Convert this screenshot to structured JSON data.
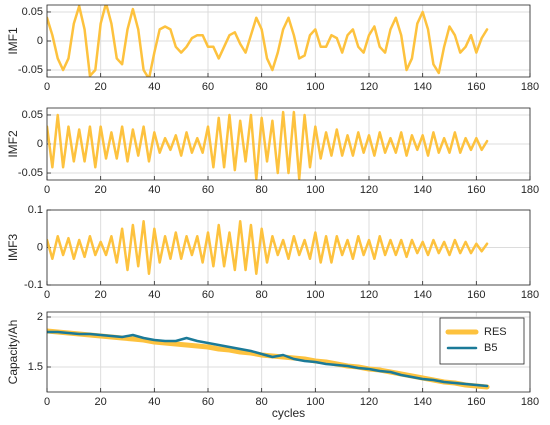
{
  "chart_data": [
    {
      "type": "line",
      "ylabel": "IMF1",
      "x": [
        0,
        2,
        4,
        6,
        8,
        10,
        12,
        14,
        16,
        18,
        20,
        22,
        24,
        26,
        28,
        30,
        32,
        34,
        36,
        38,
        40,
        42,
        44,
        46,
        48,
        50,
        52,
        54,
        56,
        58,
        60,
        62,
        64,
        66,
        68,
        70,
        72,
        74,
        76,
        78,
        80,
        82,
        84,
        86,
        88,
        90,
        92,
        94,
        96,
        98,
        100,
        102,
        104,
        106,
        108,
        110,
        112,
        114,
        116,
        118,
        120,
        122,
        124,
        126,
        128,
        130,
        132,
        134,
        136,
        138,
        140,
        142,
        144,
        146,
        148,
        150,
        152,
        154,
        156,
        158,
        160,
        162,
        164
      ],
      "series": [
        {
          "color": "#fdc23e",
          "values": [
            0.04,
            0.01,
            -0.03,
            -0.05,
            -0.03,
            0.03,
            0.06,
            0.02,
            -0.06,
            -0.05,
            0.03,
            0.065,
            0.03,
            -0.03,
            -0.04,
            0.02,
            0.055,
            0.02,
            -0.05,
            -0.065,
            -0.02,
            0.02,
            0.025,
            0.02,
            -0.01,
            -0.02,
            -0.01,
            0.005,
            0.01,
            0.01,
            -0.01,
            -0.01,
            -0.03,
            -0.01,
            0.01,
            0.015,
            -0.005,
            -0.02,
            0.01,
            0.04,
            0.02,
            -0.03,
            -0.05,
            -0.02,
            0.02,
            0.04,
            0.01,
            -0.03,
            -0.025,
            0.01,
            0.02,
            -0.01,
            -0.01,
            0.01,
            0.005,
            -0.02,
            0.01,
            0.02,
            -0.01,
            -0.02,
            0.01,
            0.025,
            -0.01,
            -0.02,
            0.02,
            0.04,
            0.01,
            -0.05,
            -0.03,
            0.03,
            0.05,
            0.02,
            -0.04,
            -0.055,
            -0.01,
            0.025,
            0.01,
            -0.02,
            -0.01,
            0.01,
            -0.02,
            0.005,
            0.02
          ]
        }
      ],
      "xlim": [
        0,
        180
      ],
      "xticks": [
        0,
        20,
        40,
        60,
        80,
        100,
        120,
        140,
        160,
        180
      ],
      "ylim": [
        -0.062,
        0.062
      ],
      "yticks": [
        -0.05,
        0,
        0.05
      ],
      "grid": true
    },
    {
      "type": "line",
      "ylabel": "IMF2",
      "x": [
        0,
        2,
        4,
        6,
        8,
        10,
        12,
        14,
        16,
        18,
        20,
        22,
        24,
        26,
        28,
        30,
        32,
        34,
        36,
        38,
        40,
        42,
        44,
        46,
        48,
        50,
        52,
        54,
        56,
        58,
        60,
        62,
        64,
        66,
        68,
        70,
        72,
        74,
        76,
        78,
        80,
        82,
        84,
        86,
        88,
        90,
        92,
        94,
        96,
        98,
        100,
        102,
        104,
        106,
        108,
        110,
        112,
        114,
        116,
        118,
        120,
        122,
        124,
        126,
        128,
        130,
        132,
        134,
        136,
        138,
        140,
        142,
        144,
        146,
        148,
        150,
        152,
        154,
        156,
        158,
        160,
        162,
        164
      ],
      "series": [
        {
          "color": "#fdc23e",
          "values": [
            0.03,
            -0.04,
            0.05,
            -0.04,
            0.03,
            -0.03,
            0.025,
            -0.03,
            0.03,
            -0.04,
            0.03,
            -0.025,
            0.02,
            -0.025,
            0.03,
            -0.03,
            0.025,
            -0.02,
            0.03,
            -0.03,
            0.02,
            -0.015,
            0.01,
            -0.01,
            0.015,
            -0.02,
            0.02,
            -0.015,
            0.01,
            -0.015,
            0.03,
            -0.04,
            0.045,
            -0.04,
            0.05,
            -0.045,
            0.04,
            -0.03,
            0.05,
            -0.06,
            0.045,
            -0.03,
            0.04,
            -0.05,
            0.055,
            -0.05,
            0.055,
            -0.06,
            0.05,
            -0.04,
            0.03,
            -0.025,
            0.02,
            -0.02,
            0.025,
            -0.02,
            0.015,
            -0.02,
            0.02,
            -0.015,
            0.015,
            -0.02,
            0.02,
            -0.015,
            0.01,
            -0.015,
            0.02,
            -0.02,
            0.015,
            -0.01,
            0.015,
            -0.02,
            0.02,
            -0.015,
            0.01,
            -0.015,
            0.02,
            -0.015,
            0.01,
            -0.01,
            0.01,
            -0.01,
            0.005
          ]
        }
      ],
      "xlim": [
        0,
        180
      ],
      "xticks": [
        0,
        20,
        40,
        60,
        80,
        100,
        120,
        140,
        160,
        180
      ],
      "ylim": [
        -0.062,
        0.062
      ],
      "yticks": [
        -0.05,
        0,
        0.05
      ],
      "grid": true
    },
    {
      "type": "line",
      "ylabel": "IMF3",
      "x": [
        0,
        2,
        4,
        6,
        8,
        10,
        12,
        14,
        16,
        18,
        20,
        22,
        24,
        26,
        28,
        30,
        32,
        34,
        36,
        38,
        40,
        42,
        44,
        46,
        48,
        50,
        52,
        54,
        56,
        58,
        60,
        62,
        64,
        66,
        68,
        70,
        72,
        74,
        76,
        78,
        80,
        82,
        84,
        86,
        88,
        90,
        92,
        94,
        96,
        98,
        100,
        102,
        104,
        106,
        108,
        110,
        112,
        114,
        116,
        118,
        120,
        122,
        124,
        126,
        128,
        130,
        132,
        134,
        136,
        138,
        140,
        142,
        144,
        146,
        148,
        150,
        152,
        154,
        156,
        158,
        160,
        162,
        164
      ],
      "series": [
        {
          "color": "#fdc23e",
          "values": [
            0.02,
            -0.03,
            0.03,
            -0.02,
            0.025,
            -0.03,
            0.02,
            -0.025,
            0.03,
            -0.02,
            0.015,
            -0.02,
            0.03,
            -0.04,
            0.05,
            -0.06,
            0.06,
            -0.05,
            0.07,
            -0.07,
            0.05,
            -0.04,
            0.03,
            -0.03,
            0.04,
            -0.03,
            0.03,
            -0.02,
            0.03,
            -0.04,
            0.04,
            -0.05,
            0.06,
            -0.05,
            0.04,
            -0.06,
            0.07,
            -0.06,
            0.06,
            -0.07,
            0.05,
            -0.04,
            0.03,
            -0.02,
            0.02,
            -0.03,
            0.03,
            -0.02,
            0.02,
            -0.03,
            0.04,
            -0.04,
            0.03,
            -0.04,
            0.03,
            -0.02,
            0.02,
            -0.03,
            0.03,
            -0.02,
            0.02,
            -0.03,
            0.03,
            -0.02,
            0.02,
            -0.02,
            0.02,
            -0.025,
            0.02,
            -0.015,
            0.015,
            -0.02,
            0.02,
            -0.015,
            0.015,
            -0.02,
            0.02,
            -0.015,
            0.015,
            -0.015,
            0.01,
            -0.01,
            0.01
          ]
        }
      ],
      "xlim": [
        0,
        180
      ],
      "xticks": [
        0,
        20,
        40,
        60,
        80,
        100,
        120,
        140,
        160,
        180
      ],
      "ylim": [
        -0.1,
        0.1
      ],
      "yticks": [
        -0.1,
        0,
        0.1
      ],
      "grid": true
    },
    {
      "type": "line",
      "ylabel": "Capacity/Ah",
      "xlabel": "cycles",
      "x": [
        0,
        4,
        8,
        12,
        16,
        20,
        24,
        28,
        32,
        36,
        40,
        44,
        48,
        52,
        56,
        60,
        64,
        68,
        72,
        76,
        80,
        84,
        88,
        92,
        96,
        100,
        104,
        108,
        112,
        116,
        120,
        124,
        128,
        132,
        136,
        140,
        144,
        148,
        152,
        156,
        160,
        164
      ],
      "series": [
        {
          "name": "RES",
          "color": "#fdc23e",
          "width": 5,
          "values": [
            1.86,
            1.85,
            1.84,
            1.83,
            1.82,
            1.81,
            1.8,
            1.79,
            1.78,
            1.77,
            1.75,
            1.74,
            1.73,
            1.72,
            1.71,
            1.7,
            1.68,
            1.67,
            1.65,
            1.64,
            1.62,
            1.61,
            1.6,
            1.59,
            1.58,
            1.56,
            1.55,
            1.53,
            1.51,
            1.5,
            1.48,
            1.47,
            1.45,
            1.43,
            1.41,
            1.39,
            1.37,
            1.35,
            1.34,
            1.32,
            1.31,
            1.3
          ]
        },
        {
          "name": "B5",
          "color": "#1b7a98",
          "width": 2.5,
          "values": [
            1.85,
            1.85,
            1.84,
            1.83,
            1.83,
            1.82,
            1.81,
            1.8,
            1.82,
            1.79,
            1.77,
            1.76,
            1.76,
            1.79,
            1.76,
            1.74,
            1.72,
            1.7,
            1.68,
            1.66,
            1.63,
            1.6,
            1.62,
            1.58,
            1.56,
            1.55,
            1.53,
            1.52,
            1.51,
            1.49,
            1.48,
            1.46,
            1.45,
            1.42,
            1.4,
            1.38,
            1.37,
            1.35,
            1.34,
            1.33,
            1.32,
            1.31
          ]
        }
      ],
      "xlim": [
        0,
        180
      ],
      "xticks": [
        0,
        20,
        40,
        60,
        80,
        100,
        120,
        140,
        160,
        180
      ],
      "ylim": [
        1.25,
        2.05
      ],
      "yticks": [
        1.5,
        2
      ],
      "grid": true,
      "legend": "northeast"
    }
  ]
}
